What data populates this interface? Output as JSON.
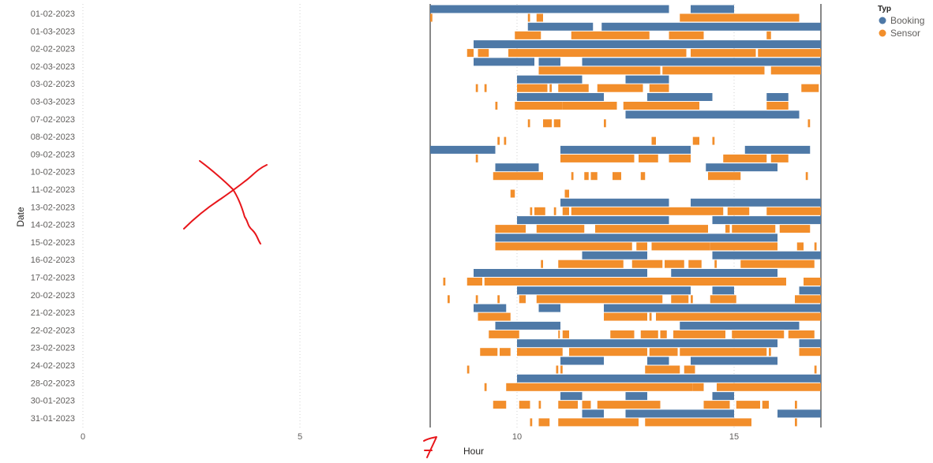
{
  "chart_data": {
    "type": "gantt",
    "xlabel": "Hour",
    "ylabel": "Date",
    "xlim": [
      0,
      17
    ],
    "x_ticks": [
      0,
      5,
      10,
      15
    ],
    "grid": "dotted vertical at x ticks; solid reference lines at 8 and 17",
    "reference_lines": [
      8,
      17
    ],
    "legend": {
      "title": "Typ",
      "position": "top-right",
      "entries": [
        {
          "name": "Booking",
          "color": "#4e79a7"
        },
        {
          "name": "Sensor",
          "color": "#f28e2b"
        }
      ]
    },
    "categories": [
      "01-02-2023",
      "01-03-2023",
      "02-02-2023",
      "02-03-2023",
      "03-02-2023",
      "03-03-2023",
      "07-02-2023",
      "08-02-2023",
      "09-02-2023",
      "10-02-2023",
      "11-02-2023",
      "13-02-2023",
      "14-02-2023",
      "15-02-2023",
      "16-02-2023",
      "17-02-2023",
      "20-02-2023",
      "21-02-2023",
      "22-02-2023",
      "23-02-2023",
      "24-02-2023",
      "28-02-2023",
      "30-01-2023",
      "31-01-2023"
    ],
    "series": [
      {
        "name": "Booking",
        "color": "#4e79a7",
        "bars": [
          [
            [
              8.0,
              13.5
            ],
            [
              14.0,
              15.0
            ]
          ],
          [
            [
              10.25,
              11.75
            ],
            [
              11.95,
              17.0
            ]
          ],
          [
            [
              9.0,
              17.0
            ]
          ],
          [
            [
              9.0,
              10.4
            ],
            [
              10.5,
              11.0
            ],
            [
              11.5,
              17.0
            ]
          ],
          [
            [
              10.0,
              11.5
            ],
            [
              12.5,
              13.5
            ]
          ],
          [
            [
              10.0,
              12.0
            ],
            [
              13.0,
              14.5
            ],
            [
              15.75,
              16.25
            ]
          ],
          [
            [
              12.5,
              16.5
            ]
          ],
          [],
          [
            [
              8.0,
              9.5
            ],
            [
              11.0,
              14.0
            ],
            [
              15.25,
              16.75
            ]
          ],
          [
            [
              9.5,
              10.5
            ],
            [
              14.35,
              16.0
            ]
          ],
          [],
          [
            [
              11.0,
              13.5
            ],
            [
              14.0,
              17.0
            ]
          ],
          [
            [
              10.0,
              13.5
            ],
            [
              14.5,
              17.0
            ]
          ],
          [
            [
              9.5,
              16.0
            ]
          ],
          [
            [
              11.5,
              13.0
            ],
            [
              14.5,
              17.0
            ]
          ],
          [
            [
              9.0,
              13.0
            ],
            [
              13.55,
              16.0
            ]
          ],
          [
            [
              10.0,
              14.0
            ],
            [
              14.5,
              15.0
            ],
            [
              16.5,
              17.0
            ]
          ],
          [
            [
              9.0,
              9.75
            ],
            [
              10.5,
              11.0
            ],
            [
              12.0,
              17.0
            ]
          ],
          [
            [
              9.5,
              11.0
            ],
            [
              13.75,
              16.5
            ]
          ],
          [
            [
              10.0,
              11.0
            ],
            [
              11.0,
              16.0
            ],
            [
              16.5,
              17.0
            ]
          ],
          [
            [
              11.0,
              12.0
            ],
            [
              13.0,
              13.5
            ],
            [
              14.0,
              16.0
            ]
          ],
          [
            [
              10.0,
              17.0
            ]
          ],
          [
            [
              11.0,
              11.5
            ],
            [
              12.5,
              13.0
            ],
            [
              14.5,
              15.0
            ]
          ],
          [
            [
              11.5,
              12.0
            ],
            [
              12.5,
              15.0
            ],
            [
              16.0,
              17.0
            ]
          ]
        ]
      },
      {
        "name": "Sensor",
        "color": "#f28e2b",
        "bars": [
          [
            [
              8.0,
              8.05
            ],
            [
              10.25,
              10.3
            ],
            [
              10.45,
              10.6
            ],
            [
              13.75,
              16.5
            ]
          ],
          [
            [
              9.95,
              10.55
            ],
            [
              11.25,
              13.05
            ],
            [
              13.5,
              14.3
            ],
            [
              15.75,
              15.85
            ]
          ],
          [
            [
              8.85,
              9.0
            ],
            [
              9.1,
              9.35
            ],
            [
              9.8,
              13.9
            ],
            [
              14.0,
              15.5
            ],
            [
              15.55,
              17.0
            ]
          ],
          [
            [
              10.5,
              13.3
            ],
            [
              13.35,
              15.7
            ],
            [
              15.85,
              17.0
            ]
          ],
          [
            [
              9.05,
              9.1
            ],
            [
              9.25,
              9.3
            ],
            [
              10.0,
              10.7
            ],
            [
              10.75,
              10.8
            ],
            [
              10.95,
              11.65
            ],
            [
              11.85,
              12.9
            ],
            [
              13.05,
              13.5
            ],
            [
              16.55,
              16.95
            ]
          ],
          [
            [
              9.5,
              9.55
            ],
            [
              9.95,
              11.05
            ],
            [
              11.05,
              12.3
            ],
            [
              12.45,
              14.2
            ],
            [
              15.75,
              16.25
            ]
          ],
          [
            [
              10.25,
              10.3
            ],
            [
              10.6,
              10.8
            ],
            [
              10.85,
              11.0
            ],
            [
              12.0,
              12.05
            ],
            [
              16.7,
              16.75
            ]
          ],
          [
            [
              9.55,
              9.6
            ],
            [
              9.7,
              9.75
            ],
            [
              13.1,
              13.2
            ],
            [
              14.05,
              14.2
            ],
            [
              14.5,
              14.55
            ]
          ],
          [
            [
              9.05,
              9.1
            ],
            [
              11.0,
              12.7
            ],
            [
              12.8,
              13.25
            ],
            [
              13.5,
              14.0
            ],
            [
              14.75,
              15.75
            ],
            [
              15.85,
              16.25
            ]
          ],
          [
            [
              9.45,
              10.6
            ],
            [
              11.25,
              11.3
            ],
            [
              11.55,
              11.65
            ],
            [
              11.7,
              11.85
            ],
            [
              12.2,
              12.4
            ],
            [
              12.85,
              12.95
            ],
            [
              14.4,
              15.15
            ],
            [
              16.65,
              16.7
            ]
          ],
          [
            [
              9.85,
              9.95
            ],
            [
              11.1,
              11.2
            ]
          ],
          [
            [
              10.3,
              10.35
            ],
            [
              10.4,
              10.65
            ],
            [
              10.85,
              10.9
            ],
            [
              11.05,
              11.2
            ],
            [
              11.25,
              14.75
            ],
            [
              14.85,
              15.35
            ],
            [
              15.75,
              17.0
            ]
          ],
          [
            [
              9.5,
              10.2
            ],
            [
              10.45,
              11.55
            ],
            [
              11.8,
              14.4
            ],
            [
              14.8,
              14.9
            ],
            [
              14.95,
              15.95
            ],
            [
              16.05,
              16.75
            ]
          ],
          [
            [
              9.5,
              12.65
            ],
            [
              12.75,
              13.0
            ],
            [
              13.1,
              14.45
            ],
            [
              14.45,
              16.0
            ],
            [
              16.45,
              16.6
            ],
            [
              16.85,
              16.9
            ]
          ],
          [
            [
              10.55,
              10.6
            ],
            [
              10.95,
              12.45
            ],
            [
              12.65,
              13.35
            ],
            [
              13.4,
              13.85
            ],
            [
              13.95,
              14.25
            ],
            [
              14.55,
              14.6
            ],
            [
              15.15,
              16.85
            ]
          ],
          [
            [
              8.3,
              8.35
            ],
            [
              8.85,
              9.2
            ],
            [
              9.25,
              16.2
            ],
            [
              16.6,
              17.0
            ]
          ],
          [
            [
              8.4,
              8.45
            ],
            [
              9.05,
              9.1
            ],
            [
              9.55,
              9.6
            ],
            [
              10.05,
              10.2
            ],
            [
              10.45,
              13.35
            ],
            [
              13.55,
              13.95
            ],
            [
              14.0,
              14.05
            ],
            [
              14.45,
              15.05
            ],
            [
              16.4,
              17.0
            ]
          ],
          [
            [
              9.1,
              9.85
            ],
            [
              12.0,
              13.0
            ],
            [
              13.05,
              13.1
            ],
            [
              13.2,
              17.0
            ]
          ],
          [
            [
              9.35,
              10.05
            ],
            [
              10.95,
              10.95
            ],
            [
              11.05,
              11.2
            ],
            [
              12.15,
              12.7
            ],
            [
              12.85,
              13.25
            ],
            [
              13.3,
              13.45
            ],
            [
              13.6,
              14.8
            ],
            [
              14.95,
              16.15
            ],
            [
              16.25,
              16.85
            ]
          ],
          [
            [
              9.15,
              9.55
            ],
            [
              9.6,
              9.85
            ],
            [
              10.0,
              11.05
            ],
            [
              11.2,
              12.0
            ],
            [
              12.0,
              13.0
            ],
            [
              13.05,
              13.7
            ],
            [
              13.75,
              15.0
            ],
            [
              15.0,
              15.75
            ],
            [
              15.8,
              15.85
            ],
            [
              16.5,
              17.0
            ]
          ],
          [
            [
              8.85,
              8.9
            ],
            [
              10.9,
              10.95
            ],
            [
              11.0,
              11.05
            ],
            [
              12.95,
              13.75
            ],
            [
              13.85,
              14.1
            ],
            [
              16.85,
              16.9
            ]
          ],
          [
            [
              9.25,
              9.3
            ],
            [
              9.75,
              14.05
            ],
            [
              14.05,
              14.3
            ],
            [
              14.6,
              17.0
            ]
          ],
          [
            [
              9.45,
              9.75
            ],
            [
              10.05,
              10.3
            ],
            [
              10.5,
              10.55
            ],
            [
              10.95,
              11.4
            ],
            [
              11.5,
              11.7
            ],
            [
              11.85,
              13.3
            ],
            [
              14.3,
              14.9
            ],
            [
              15.05,
              15.6
            ],
            [
              15.65,
              15.8
            ],
            [
              16.4,
              16.45
            ]
          ],
          [
            [
              10.3,
              10.35
            ],
            [
              10.5,
              10.75
            ],
            [
              10.95,
              12.8
            ],
            [
              12.95,
              15.4
            ],
            [
              16.4,
              16.45
            ]
          ]
        ]
      }
    ]
  }
}
